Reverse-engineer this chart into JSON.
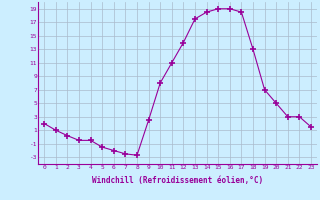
{
  "x": [
    0,
    1,
    2,
    3,
    4,
    5,
    6,
    7,
    8,
    9,
    10,
    11,
    12,
    13,
    14,
    15,
    16,
    17,
    18,
    19,
    20,
    21,
    22,
    23
  ],
  "y": [
    2,
    1,
    0.2,
    -0.5,
    -0.5,
    -1.5,
    -2,
    -2.5,
    -2.7,
    2.5,
    8,
    11,
    14,
    17.5,
    18.5,
    19,
    19,
    18.5,
    13,
    7,
    5,
    3,
    3,
    1.5
  ],
  "xlabel": "Windchill (Refroidissement éolien,°C)",
  "ylim": [
    -4,
    20
  ],
  "xlim": [
    -0.5,
    23.5
  ],
  "yticks": [
    -3,
    -1,
    1,
    3,
    5,
    7,
    9,
    11,
    13,
    15,
    17,
    19
  ],
  "xticks": [
    0,
    1,
    2,
    3,
    4,
    5,
    6,
    7,
    8,
    9,
    10,
    11,
    12,
    13,
    14,
    15,
    16,
    17,
    18,
    19,
    20,
    21,
    22,
    23
  ],
  "line_color": "#990099",
  "bg_color": "#cceeff",
  "grid_color": "#aabbcc",
  "marker": "+",
  "marker_size": 4,
  "tick_fontsize": 4.5,
  "xlabel_fontsize": 5.5
}
